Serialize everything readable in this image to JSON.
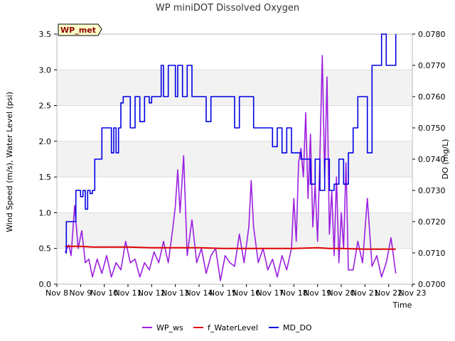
{
  "chart_data": {
    "type": "line",
    "title": "WP miniDOT Dissolved Oxygen",
    "site_label": "WP_met",
    "xlabel": "Time",
    "ylabel_left": "Wind Speed (m/s), Water Level (psi)",
    "ylabel_right": "DO (mg/L)",
    "x_range_days": [
      8,
      23
    ],
    "ylim_left": [
      0,
      3.5
    ],
    "ylim_right": [
      0.07,
      0.078
    ],
    "x_tick_labels": [
      "Nov 8",
      "Nov 9",
      "Nov 10",
      "Nov 11",
      "Nov 12",
      "Nov 13",
      "Nov 14",
      "Nov 15",
      "Nov 16",
      "Nov 17",
      "Nov 18",
      "Nov 19",
      "Nov 20",
      "Nov 21",
      "Nov 22",
      "Nov 23"
    ],
    "y_left_tick_labels": [
      "0.0",
      "0.5",
      "1.0",
      "1.5",
      "2.0",
      "2.5",
      "3.0",
      "3.5"
    ],
    "y_right_tick_labels": [
      "0.0700",
      "0.0710",
      "0.0720",
      "0.0730",
      "0.0740",
      "0.0750",
      "0.0760",
      "0.0770",
      "0.0780"
    ],
    "grid": "horizontal bands",
    "legend_placement": "bottom-center",
    "series": [
      {
        "name": "WP_ws",
        "color": "#9b1fe0",
        "axis": "left",
        "x": [
          8.35,
          8.5,
          8.6,
          8.75,
          8.9,
          9.05,
          9.2,
          9.35,
          9.5,
          9.7,
          9.9,
          10.1,
          10.3,
          10.5,
          10.7,
          10.9,
          11.1,
          11.3,
          11.5,
          11.7,
          11.9,
          12.1,
          12.3,
          12.5,
          12.7,
          12.9,
          13.0,
          13.1,
          13.2,
          13.35,
          13.5,
          13.7,
          13.9,
          14.1,
          14.3,
          14.5,
          14.7,
          14.9,
          15.1,
          15.3,
          15.5,
          15.7,
          15.9,
          16.1,
          16.2,
          16.3,
          16.5,
          16.7,
          16.9,
          17.1,
          17.3,
          17.5,
          17.7,
          17.9,
          18.0,
          18.1,
          18.2,
          18.3,
          18.4,
          18.5,
          18.6,
          18.7,
          18.8,
          18.9,
          19.0,
          19.1,
          19.2,
          19.3,
          19.4,
          19.5,
          19.6,
          19.7,
          19.8,
          19.9,
          20.0,
          20.1,
          20.2,
          20.3,
          20.5,
          20.7,
          20.9,
          21.1,
          21.3,
          21.5,
          21.7,
          21.9,
          22.1,
          22.3
        ],
        "y": [
          0.45,
          0.55,
          0.4,
          1.1,
          0.5,
          0.75,
          0.3,
          0.35,
          0.1,
          0.35,
          0.15,
          0.4,
          0.1,
          0.3,
          0.2,
          0.6,
          0.3,
          0.35,
          0.1,
          0.3,
          0.2,
          0.45,
          0.3,
          0.6,
          0.3,
          0.8,
          1.1,
          1.6,
          1.0,
          1.8,
          0.4,
          0.9,
          0.3,
          0.5,
          0.15,
          0.4,
          0.5,
          0.05,
          0.4,
          0.3,
          0.25,
          0.7,
          0.3,
          0.8,
          1.45,
          0.8,
          0.3,
          0.5,
          0.2,
          0.35,
          0.1,
          0.4,
          0.2,
          0.5,
          1.2,
          0.6,
          1.7,
          1.9,
          1.5,
          2.4,
          1.2,
          2.1,
          0.8,
          1.4,
          0.6,
          1.8,
          3.2,
          1.5,
          2.9,
          0.7,
          1.3,
          0.4,
          1.5,
          0.3,
          1.0,
          0.5,
          1.7,
          0.2,
          0.2,
          0.6,
          0.3,
          1.2,
          0.25,
          0.4,
          0.1,
          0.3,
          0.65,
          0.15
        ]
      },
      {
        "name": "f_WaterLevel",
        "color": "#e00000",
        "axis": "left",
        "x": [
          8.35,
          9.0,
          9.5,
          10.0,
          11.0,
          12.0,
          13.0,
          14.0,
          15.0,
          16.0,
          17.0,
          18.0,
          19.0,
          19.5,
          20.0,
          21.0,
          22.0,
          22.3
        ],
        "y": [
          0.53,
          0.53,
          0.52,
          0.52,
          0.52,
          0.51,
          0.51,
          0.51,
          0.5,
          0.5,
          0.5,
          0.5,
          0.51,
          0.5,
          0.5,
          0.49,
          0.49,
          0.49
        ]
      },
      {
        "name": "MD_DO",
        "color": "#0000e6",
        "axis": "right",
        "x": [
          8.35,
          8.4,
          8.7,
          8.8,
          9.0,
          9.1,
          9.2,
          9.3,
          9.4,
          9.5,
          9.6,
          9.8,
          9.9,
          10.0,
          10.2,
          10.3,
          10.4,
          10.5,
          10.6,
          10.7,
          10.8,
          11.0,
          11.1,
          11.3,
          11.5,
          11.7,
          11.9,
          12.0,
          12.1,
          12.4,
          12.5,
          12.7,
          12.9,
          13.0,
          13.1,
          13.2,
          13.3,
          13.5,
          13.7,
          13.9,
          14.1,
          14.3,
          14.5,
          14.7,
          14.9,
          15.1,
          15.3,
          15.5,
          15.7,
          15.9,
          16.1,
          16.3,
          16.5,
          16.7,
          16.9,
          17.1,
          17.3,
          17.5,
          17.7,
          17.9,
          18.1,
          18.3,
          18.5,
          18.7,
          18.9,
          19.1,
          19.3,
          19.5,
          19.7,
          19.9,
          20.1,
          20.3,
          20.5,
          20.7,
          20.9,
          21.1,
          21.3,
          21.5,
          21.7,
          21.9,
          22.1,
          22.3
        ],
        "y": [
          0.071,
          0.072,
          0.072,
          0.073,
          0.0728,
          0.073,
          0.0724,
          0.073,
          0.0729,
          0.073,
          0.074,
          0.074,
          0.075,
          0.075,
          0.075,
          0.0742,
          0.075,
          0.0742,
          0.075,
          0.0758,
          0.076,
          0.076,
          0.075,
          0.076,
          0.0752,
          0.076,
          0.0758,
          0.076,
          0.076,
          0.077,
          0.076,
          0.077,
          0.077,
          0.076,
          0.077,
          0.077,
          0.076,
          0.077,
          0.076,
          0.076,
          0.076,
          0.0752,
          0.076,
          0.076,
          0.076,
          0.076,
          0.076,
          0.075,
          0.076,
          0.076,
          0.076,
          0.075,
          0.075,
          0.075,
          0.075,
          0.0744,
          0.075,
          0.0742,
          0.075,
          0.0742,
          0.0742,
          0.074,
          0.074,
          0.0732,
          0.074,
          0.073,
          0.074,
          0.073,
          0.0732,
          0.074,
          0.0732,
          0.0742,
          0.075,
          0.076,
          0.076,
          0.0742,
          0.077,
          0.077,
          0.078,
          0.077,
          0.077,
          0.078
        ]
      }
    ]
  }
}
